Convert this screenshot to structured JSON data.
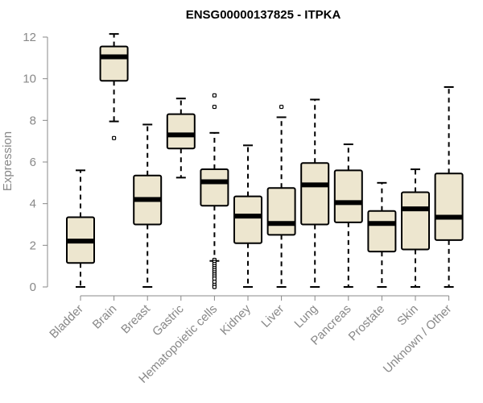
{
  "chart_data": {
    "type": "box",
    "title": "ENSG00000137825 - ITPKA",
    "xlabel": "",
    "ylabel": "Expression",
    "ylim": [
      0,
      12
    ],
    "yticks": [
      "0",
      "2",
      "4",
      "6",
      "8",
      "10",
      "12"
    ],
    "grid": false,
    "categories": [
      "Bladder",
      "Brain",
      "Breast",
      "Gastric",
      "Hematopoietic cells",
      "Kidney",
      "Liver",
      "Lung",
      "Pancreas",
      "Prostate",
      "Skin",
      "Unknown / Other"
    ],
    "boxes": [
      {
        "whisker_low": 0.0,
        "q1": 1.15,
        "median": 2.2,
        "q3": 3.35,
        "whisker_high": 5.6,
        "outliers": []
      },
      {
        "whisker_low": 7.95,
        "q1": 9.9,
        "median": 11.05,
        "q3": 11.55,
        "whisker_high": 12.15,
        "outliers": [
          7.15
        ]
      },
      {
        "whisker_low": 0.0,
        "q1": 3.0,
        "median": 4.2,
        "q3": 5.35,
        "whisker_high": 7.8,
        "outliers": []
      },
      {
        "whisker_low": 5.25,
        "q1": 6.65,
        "median": 7.3,
        "q3": 8.3,
        "whisker_high": 9.05,
        "outliers": []
      },
      {
        "whisker_low": 1.25,
        "q1": 3.9,
        "median": 5.05,
        "q3": 5.65,
        "whisker_high": 7.4,
        "outliers": [
          9.2,
          8.65,
          1.3,
          1.2,
          1.1,
          1.0,
          0.9,
          0.8,
          0.7,
          0.6,
          0.5,
          0.4,
          0.25,
          0.1,
          0.0
        ]
      },
      {
        "whisker_low": 0.0,
        "q1": 2.1,
        "median": 3.4,
        "q3": 4.35,
        "whisker_high": 6.8,
        "outliers": []
      },
      {
        "whisker_low": 0.0,
        "q1": 2.5,
        "median": 3.05,
        "q3": 4.75,
        "whisker_high": 8.15,
        "outliers": [
          8.65
        ]
      },
      {
        "whisker_low": 0.0,
        "q1": 3.0,
        "median": 4.9,
        "q3": 5.95,
        "whisker_high": 9.0,
        "outliers": []
      },
      {
        "whisker_low": 0.0,
        "q1": 3.1,
        "median": 4.05,
        "q3": 5.6,
        "whisker_high": 6.85,
        "outliers": []
      },
      {
        "whisker_low": 0.0,
        "q1": 1.7,
        "median": 3.05,
        "q3": 3.65,
        "whisker_high": 5.0,
        "outliers": []
      },
      {
        "whisker_low": 0.0,
        "q1": 1.8,
        "median": 3.75,
        "q3": 4.55,
        "whisker_high": 5.65,
        "outliers": []
      },
      {
        "whisker_low": 0.0,
        "q1": 2.25,
        "median": 3.35,
        "q3": 5.45,
        "whisker_high": 9.6,
        "outliers": []
      }
    ],
    "colors": {
      "box_fill": "#ede6cf",
      "stroke": "#000000",
      "axis": "#888888"
    }
  }
}
